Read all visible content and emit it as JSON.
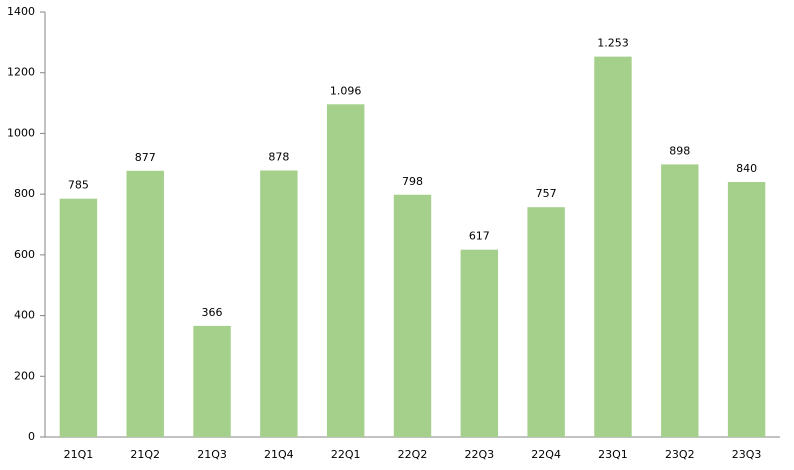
{
  "chart_data": {
    "type": "bar",
    "categories": [
      "21Q1",
      "21Q2",
      "21Q3",
      "21Q4",
      "22Q1",
      "22Q2",
      "22Q3",
      "22Q4",
      "23Q1",
      "23Q2",
      "23Q3"
    ],
    "values": [
      785,
      877,
      366,
      878,
      1096,
      798,
      617,
      757,
      1253,
      898,
      840
    ],
    "value_labels": [
      "785",
      "877",
      "366",
      "878",
      "1.096",
      "798",
      "617",
      "757",
      "1.253",
      "898",
      "840"
    ],
    "color": "#a4d08c",
    "ylim": [
      0,
      1400
    ],
    "yticks": [
      0,
      200,
      400,
      600,
      800,
      1000,
      1200,
      1400
    ],
    "grid": false
  }
}
